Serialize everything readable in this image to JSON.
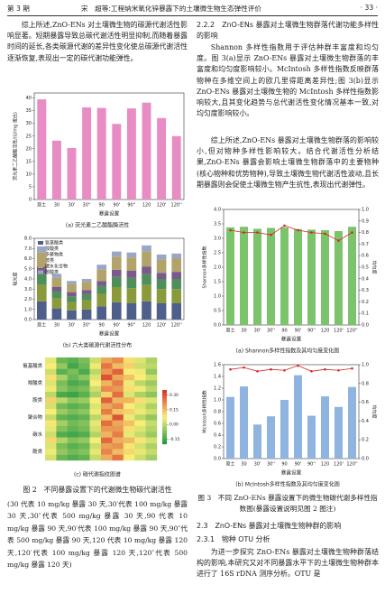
{
  "header": {
    "issue": "第 3 期",
    "title": "宋　超等:工程纳米氧化锌暴露下的土壤微生物生态弹性评价",
    "page": "· 33 ·"
  },
  "left_text": [
    "综上所述,ZnO-ENs 对土壤微生物的碳源代谢活性影响显著。短期暴露导致总碳代谢活性明显抑制,而随着暴露时间的延长,各类碳源代谢的差异性变化使总碳源代谢活性逐渐恢复,表现出一定的碳代谢功能弹性。"
  ],
  "figure2": {
    "caption": "图 2　不同暴露设置下的代谢微生物碳代谢活性",
    "note": "(30 代表 10 mg/kg 暴露 30 天,30′代表 100 mg/kg 暴露 30 天,30″代表 500 mg/kg 暴露 30 天,90 代表 10 mg/kg 暴露 90 天,90′代表 100 mg/kg 暴露 90 天,90″代表 500 mg/kg 暴露 90 天,120 代表 10 mg/kg 暴露 120 天,120′代表 100 mg/kg 暴露 120 天,120″代表 500 mg/kg 暴露 120 天)"
  },
  "right_text": {
    "heading_222": "2.2.2　ZnO-ENs 暴露对土壤微生物群落代谢功能多样性的影响",
    "paragraphs": [
      "Shannon 多样性指数用于评估种群丰富度和均匀度。图 3(a)显示 ZnO-ENs 暴露对土壤微生物群落的丰富度和均匀度影响较小。McIntosh 多样性指数反映群落物种在多维空间上的欧几里得距离差异性;图 3(b)显示 ZnO-ENs 暴露对土壤微生物的 McIntosh 多样性指数影响较大,且其变化趋势与总代谢活性变化情况基本一致,对均匀度影响较小。",
      "综上所述,ZnO-ENs 暴露对土壤微生物群落的影响较小,但对物种多样性影响较大。结合代谢活性分析结果,ZnO-ENs 暴露会影响土壤微生物群落中的主要物种(核心物种和优势物种),导致土壤微生物代谢活性波动,且长期暴露则会促使土壤微生物产生抗性,表现出代谢弹性。"
    ],
    "heading_23": "2.3　ZnO-ENs 暴露对土壤微生物种群的影响",
    "heading_231": "2.3.1　物种 OTU 分析",
    "paragraph_231": "为进一步探究 ZnO-ENs 暴露对土壤微生物种群落结构的影响,本研究又对不同暴露水平下的土壤微生物种群本进行了 16S rDNA 测序分析。OTU 是"
  },
  "figure3": {
    "caption": "图 3　不同 ZnO-ENs 暴露设置下的微生物碳代谢多样性指数图(暴露设置说明见图 2 图注)"
  },
  "chart_data": [
    {
      "type": "bar",
      "caption": "(a) 荧光素二乙酸酯酶活性",
      "y_label": "荧光素二乙酸酯活性/(U/mg 蛋白)",
      "x_label": "暴露设置",
      "categories": [
        "原土",
        "30",
        "30'",
        "30''",
        "90",
        "90'",
        "90''",
        "120",
        "120'",
        "120''"
      ],
      "values": [
        39.5,
        23.2,
        20.3,
        36.3,
        36.1,
        29.8,
        35.9,
        38.2,
        32.1,
        25.0
      ],
      "color": "#e88cc4",
      "ylim": [
        0,
        42
      ],
      "yticks": [
        0,
        5,
        10,
        15,
        20,
        25,
        30,
        35,
        40
      ]
    },
    {
      "type": "stacked_bar",
      "caption": "(b) 六大类碳源代谢活性分布",
      "y_label": "吸光度",
      "x_label": "暴露设置",
      "legend": "top-left",
      "categories": [
        "原土",
        "30",
        "30'",
        "30''",
        "90",
        "90'",
        "90''",
        "120",
        "120'",
        "120''"
      ],
      "series": [
        {
          "name": "氨基酸类",
          "color": "#4e5f8c",
          "values": [
            1.8,
            1.1,
            0.9,
            1.0,
            1.3,
            1.7,
            1.6,
            1.8,
            1.6,
            1.6
          ]
        },
        {
          "name": "羧酸类",
          "color": "#8a9a3a",
          "values": [
            1.6,
            1.0,
            0.8,
            0.9,
            1.2,
            1.5,
            1.5,
            1.6,
            1.4,
            1.4
          ]
        },
        {
          "name": "多聚物类",
          "color": "#4f8f5a",
          "values": [
            1.1,
            0.7,
            0.6,
            0.6,
            0.8,
            1.0,
            1.0,
            1.1,
            1.0,
            1.0
          ]
        },
        {
          "name": "胺类",
          "color": "#7a5a8c",
          "values": [
            0.7,
            0.4,
            0.4,
            0.4,
            0.5,
            0.7,
            0.7,
            0.7,
            0.6,
            0.7
          ]
        },
        {
          "name": "碳水化合物",
          "color": "#b2a36a",
          "values": [
            1.4,
            0.9,
            0.8,
            0.8,
            1.1,
            1.3,
            1.3,
            1.5,
            1.3,
            1.3
          ]
        },
        {
          "name": "酚酸类",
          "color": "#9aa6c2",
          "values": [
            0.6,
            0.4,
            0.3,
            0.3,
            0.5,
            0.5,
            0.5,
            0.6,
            0.5,
            0.5
          ]
        }
      ],
      "ylim": [
        0,
        8
      ],
      "yticks": [
        {
          "value": 0,
          "label": "0.0"
        },
        {
          "value": 1,
          "label": "1.0"
        },
        {
          "value": 2,
          "label": "2.0"
        },
        {
          "value": 3,
          "label": "3.0"
        },
        {
          "value": 4,
          "label": "4.0"
        },
        {
          "value": 5,
          "label": "5.0"
        },
        {
          "value": 6,
          "label": "6.0"
        },
        {
          "value": 7,
          "label": "7.0"
        },
        {
          "value": 8,
          "label": "8.0"
        }
      ]
    },
    {
      "type": "heatmap",
      "caption": "(c) 碳代谢指纹图谱",
      "row_labels": [
        "氨基酸类",
        "羧酸类",
        "胺类",
        "聚合物",
        "碳水",
        "酚类"
      ],
      "clim": [
        -0.2,
        0.35
      ],
      "cticks": [
        {
          "value": 0.3,
          "label": "0.30"
        },
        {
          "value": 0.15,
          "label": "0.15"
        },
        {
          "value": 0,
          "label": "0.00"
        },
        {
          "value": -0.15,
          "label": "-0.15"
        }
      ],
      "values": [
        [
          0.05,
          -0.1,
          -0.12,
          -0.08,
          0.02,
          0.18,
          0.22,
          0.1,
          0.04,
          -0.02
        ],
        [
          0.08,
          -0.05,
          -0.15,
          -0.1,
          0.06,
          0.25,
          0.15,
          0.12,
          0.02,
          0.0
        ],
        [
          0.02,
          -0.12,
          -0.08,
          -0.14,
          0.0,
          0.2,
          0.28,
          0.08,
          0.06,
          -0.05
        ],
        [
          0.1,
          -0.02,
          -0.1,
          -0.06,
          0.04,
          0.3,
          0.18,
          0.14,
          0.08,
          0.02
        ],
        [
          0.04,
          -0.08,
          -0.14,
          -0.12,
          0.08,
          0.16,
          0.24,
          0.06,
          0.0,
          -0.04
        ],
        [
          0.06,
          -0.06,
          -0.1,
          -0.08,
          0.02,
          0.22,
          0.2,
          0.1,
          0.06,
          0.0
        ],
        [
          0.0,
          -0.14,
          -0.16,
          -0.12,
          -0.02,
          0.12,
          0.26,
          0.04,
          -0.02,
          -0.06
        ],
        [
          0.12,
          0.0,
          -0.06,
          -0.04,
          0.08,
          0.28,
          0.16,
          0.16,
          0.1,
          0.04
        ],
        [
          0.03,
          -0.09,
          -0.12,
          -0.1,
          0.04,
          0.18,
          0.22,
          0.08,
          0.04,
          -0.02
        ],
        [
          0.07,
          -0.04,
          -0.08,
          -0.06,
          0.06,
          0.24,
          0.14,
          0.12,
          0.06,
          0.02
        ],
        [
          0.01,
          -0.11,
          -0.13,
          -0.11,
          0.0,
          0.14,
          0.3,
          0.06,
          0.0,
          -0.05
        ],
        [
          0.09,
          -0.03,
          -0.09,
          -0.07,
          0.05,
          0.26,
          0.18,
          0.14,
          0.08,
          0.01
        ],
        [
          0.05,
          -0.07,
          -0.11,
          -0.09,
          0.03,
          0.2,
          0.2,
          0.1,
          0.04,
          -0.01
        ],
        [
          0.02,
          -0.13,
          -0.15,
          -0.13,
          -0.01,
          0.16,
          0.24,
          0.05,
          0.01,
          -0.04
        ],
        [
          0.11,
          -0.01,
          -0.07,
          -0.05,
          0.07,
          0.27,
          0.17,
          0.15,
          0.09,
          0.03
        ],
        [
          0.04,
          -0.08,
          -0.12,
          -0.1,
          0.02,
          0.19,
          0.21,
          0.09,
          0.03,
          -0.02
        ],
        [
          0.06,
          -0.05,
          -0.09,
          -0.07,
          0.05,
          0.23,
          0.15,
          0.11,
          0.05,
          0.01
        ],
        [
          0.03,
          -0.1,
          -0.13,
          -0.11,
          0.01,
          0.17,
          0.25,
          0.07,
          0.02,
          -0.03
        ]
      ]
    },
    {
      "type": "bar_line",
      "caption": "(a) Shannon多样性指数及其均匀度变化图",
      "y_label": "Shannon多样性指数",
      "y2_label": "均匀度",
      "x_label": "暴露设置",
      "categories": [
        "原土",
        "30",
        "30'",
        "30''",
        "90",
        "90'",
        "90''",
        "120",
        "120'",
        "120''"
      ],
      "series": [
        {
          "color": "#7cc46c",
          "values": [
            3.38,
            3.4,
            3.33,
            3.36,
            3.38,
            3.32,
            3.3,
            3.28,
            3.25,
            3.4
          ]
        },
        {
          "color": "#d62728",
          "axis": "y2",
          "values": [
            0.82,
            0.8,
            0.8,
            0.78,
            0.86,
            0.82,
            0.8,
            0.79,
            0.73,
            0.8
          ]
        }
      ],
      "ylim": [
        0,
        4
      ],
      "yticks": [
        {
          "value": 0,
          "label": "0.0"
        },
        {
          "value": 0.5,
          "label": "0.5"
        },
        {
          "value": 1,
          "label": "1.0"
        },
        {
          "value": 1.5,
          "label": "1.5"
        },
        {
          "value": 2,
          "label": "2.0"
        },
        {
          "value": 2.5,
          "label": "2.5"
        },
        {
          "value": 3,
          "label": "3.0"
        },
        {
          "value": 3.5,
          "label": "3.5"
        },
        {
          "value": 4,
          "label": "4.0"
        }
      ],
      "y2lim": [
        0,
        1
      ],
      "y2ticks": [
        {
          "value": 0,
          "label": "0.0"
        },
        {
          "value": 0.1,
          "label": "0.1"
        },
        {
          "value": 0.2,
          "label": "0.2"
        },
        {
          "value": 0.3,
          "label": "0.3"
        },
        {
          "value": 0.4,
          "label": "0.4"
        },
        {
          "value": 0.5,
          "label": "0.5"
        },
        {
          "value": 0.6,
          "label": "0.6"
        },
        {
          "value": 0.7,
          "label": "0.7"
        },
        {
          "value": 0.8,
          "label": "0.8"
        },
        {
          "value": 0.9,
          "label": "0.9"
        },
        {
          "value": 1,
          "label": "1.0"
        }
      ]
    },
    {
      "type": "bar_line",
      "caption": "(b) McIntosh多样性指数及其均匀度变化图",
      "y_label": "McIntosh多样性指数",
      "y2_label": "均匀度",
      "x_label": "暴露设置",
      "categories": [
        "原土",
        "30",
        "30'",
        "30''",
        "90",
        "90'",
        "90''",
        "120",
        "120'",
        "120''"
      ],
      "series": [
        {
          "color": "#8fb4e0",
          "values": [
            1.05,
            1.23,
            0.58,
            0.72,
            1.0,
            1.42,
            0.73,
            1.06,
            0.88,
            1.22
          ]
        },
        {
          "color": "#d62728",
          "axis": "y2",
          "values": [
            0.95,
            0.97,
            0.93,
            0.95,
            0.94,
            0.99,
            0.93,
            0.95,
            0.94,
            0.96
          ]
        }
      ],
      "ylim": [
        0,
        1.6
      ],
      "yticks": [
        {
          "value": 0,
          "label": "0.0"
        },
        {
          "value": 0.2,
          "label": "0.2"
        },
        {
          "value": 0.4,
          "label": "0.4"
        },
        {
          "value": 0.6,
          "label": "0.6"
        },
        {
          "value": 0.8,
          "label": "0.8"
        },
        {
          "value": 1,
          "label": "1.0"
        },
        {
          "value": 1.2,
          "label": "1.2"
        },
        {
          "value": 1.4,
          "label": "1.4"
        },
        {
          "value": 1.6,
          "label": "1.6"
        }
      ],
      "y2lim": [
        0,
        1
      ],
      "y2ticks": [
        {
          "value": 0,
          "label": "0.0"
        },
        {
          "value": 0.2,
          "label": "0.2"
        },
        {
          "value": 0.4,
          "label": "0.4"
        },
        {
          "value": 0.6,
          "label": "0.6"
        },
        {
          "value": 0.8,
          "label": "0.8"
        },
        {
          "value": 1,
          "label": "1.0"
        }
      ]
    }
  ]
}
